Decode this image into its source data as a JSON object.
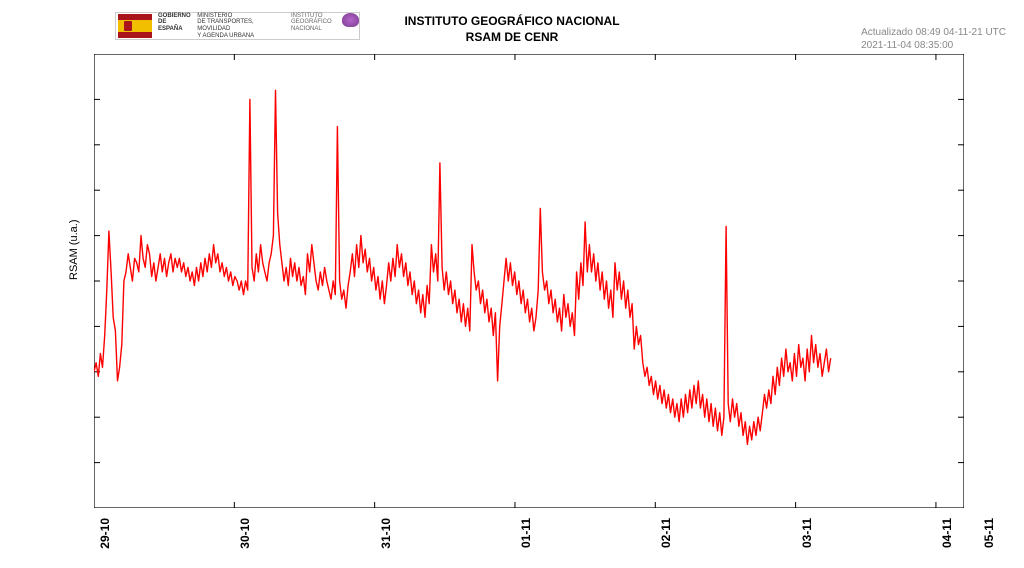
{
  "header": {
    "title_line1": "INSTITUTO GEOGRÁFICO NACIONAL",
    "title_line2": "RSAM DE CENR",
    "timestamp_line1": "Actualizado 08:49 04-11-21 UTC",
    "timestamp_line2": "2021-11-04 08:35:00",
    "logo": {
      "gov": "GOBIERNO",
      "gov2": "DE ESPAÑA",
      "min1": "MINISTERIO",
      "min2": "DE TRANSPORTES, MOVILIDAD",
      "min3": "Y AGENDA URBANA",
      "ign1": "INSTITUTO",
      "ign2": "GEOGRÁFICO",
      "ign3": "NACIONAL"
    }
  },
  "chart": {
    "type": "line",
    "ylabel": "RSAM (u.a.)",
    "line_color": "#ff0000",
    "line_width": 1.4,
    "background_color": "#ffffff",
    "axis_color": "#000000",
    "xlim": [
      0,
      6.2
    ],
    "ylim": [
      0,
      10
    ],
    "xticks": [
      {
        "pos": 0,
        "label": "29-10"
      },
      {
        "pos": 1,
        "label": "30-10"
      },
      {
        "pos": 2,
        "label": "31-10"
      },
      {
        "pos": 3,
        "label": "01-11"
      },
      {
        "pos": 4,
        "label": "02-11"
      },
      {
        "pos": 5,
        "label": "03-11"
      },
      {
        "pos": 6,
        "label": "04-11"
      },
      {
        "pos": 6.2,
        "label": "05-11",
        "outside": true
      }
    ],
    "yticks_minor": [
      1,
      2,
      3,
      4,
      5,
      6,
      7,
      8,
      9
    ],
    "series_y": [
      3.0,
      3.2,
      2.9,
      3.4,
      3.1,
      3.8,
      4.8,
      6.1,
      5.2,
      4.2,
      3.9,
      2.8,
      3.1,
      3.6,
      5.0,
      5.2,
      5.6,
      5.3,
      5.0,
      5.5,
      5.4,
      5.2,
      6.0,
      5.5,
      5.3,
      5.8,
      5.6,
      5.1,
      5.4,
      5.0,
      5.3,
      5.6,
      5.2,
      5.5,
      5.1,
      5.4,
      5.6,
      5.2,
      5.5,
      5.3,
      5.5,
      5.2,
      5.4,
      5.1,
      5.3,
      5.0,
      5.2,
      4.9,
      5.3,
      5.0,
      5.4,
      5.1,
      5.5,
      5.2,
      5.6,
      5.3,
      5.8,
      5.4,
      5.6,
      5.2,
      5.4,
      5.1,
      5.3,
      5.0,
      5.2,
      4.9,
      5.1,
      5.0,
      4.8,
      5.0,
      4.7,
      5.0,
      4.8,
      9.0,
      5.3,
      5.0,
      5.6,
      5.2,
      5.8,
      5.4,
      5.2,
      5.0,
      5.4,
      5.6,
      6.0,
      9.2,
      6.5,
      5.8,
      5.4,
      5.0,
      5.3,
      4.9,
      5.5,
      5.1,
      5.4,
      5.0,
      5.3,
      4.9,
      5.1,
      4.7,
      5.6,
      5.2,
      5.8,
      5.4,
      5.0,
      4.8,
      5.2,
      4.9,
      5.3,
      5.0,
      4.8,
      4.6,
      5.0,
      4.7,
      8.4,
      5.0,
      4.6,
      4.8,
      4.4,
      4.9,
      5.2,
      5.6,
      5.1,
      5.8,
      5.3,
      6.0,
      5.4,
      5.7,
      5.2,
      5.5,
      5.0,
      5.3,
      4.8,
      5.1,
      4.6,
      5.0,
      4.5,
      4.9,
      5.4,
      5.0,
      5.5,
      5.1,
      5.8,
      5.3,
      5.6,
      5.1,
      5.4,
      4.9,
      5.2,
      4.7,
      5.0,
      4.5,
      4.8,
      4.3,
      4.7,
      4.2,
      4.9,
      4.5,
      5.8,
      5.2,
      5.6,
      5.0,
      7.6,
      5.3,
      4.8,
      5.2,
      4.7,
      5.0,
      4.5,
      4.8,
      4.3,
      4.6,
      4.1,
      4.5,
      4.0,
      4.4,
      3.9,
      5.8,
      5.2,
      4.8,
      5.0,
      4.5,
      4.8,
      4.3,
      4.6,
      4.1,
      4.4,
      3.8,
      4.3,
      2.8,
      4.0,
      4.5,
      5.0,
      5.5,
      5.0,
      5.4,
      4.9,
      5.2,
      4.7,
      5.0,
      4.5,
      4.8,
      4.3,
      4.6,
      4.1,
      4.4,
      3.9,
      4.2,
      4.8,
      6.6,
      5.2,
      4.8,
      5.0,
      4.5,
      4.8,
      4.3,
      4.6,
      4.1,
      4.4,
      3.9,
      4.7,
      4.2,
      4.5,
      4.0,
      4.3,
      3.8,
      5.2,
      4.6,
      5.4,
      4.9,
      6.3,
      5.2,
      5.8,
      5.2,
      5.6,
      5.0,
      5.4,
      4.8,
      5.2,
      4.6,
      5.0,
      4.4,
      4.8,
      4.2,
      5.4,
      4.8,
      5.2,
      4.6,
      5.0,
      4.4,
      4.8,
      4.2,
      4.5,
      3.5,
      4.0,
      3.6,
      3.8,
      3.2,
      2.9,
      3.1,
      2.7,
      2.9,
      2.5,
      2.8,
      2.4,
      2.7,
      2.3,
      2.6,
      2.2,
      2.5,
      2.1,
      2.4,
      2.0,
      2.3,
      1.9,
      2.4,
      2.0,
      2.5,
      2.1,
      2.6,
      2.2,
      2.7,
      2.3,
      2.8,
      2.2,
      2.5,
      2.0,
      2.4,
      1.9,
      2.3,
      1.8,
      2.2,
      1.7,
      2.1,
      1.6,
      2.0,
      6.2,
      2.3,
      1.9,
      2.4,
      2.0,
      2.3,
      1.8,
      2.1,
      1.6,
      1.9,
      1.4,
      1.8,
      1.5,
      1.9,
      1.6,
      2.0,
      1.7,
      2.1,
      2.5,
      2.2,
      2.6,
      2.3,
      2.9,
      2.5,
      3.1,
      2.7,
      3.3,
      2.9,
      3.5,
      3.0,
      3.2,
      2.8,
      3.4,
      2.9,
      3.6,
      3.1,
      3.3,
      2.8,
      3.5,
      3.0,
      3.8,
      3.2,
      3.6,
      3.1,
      3.4,
      2.9,
      3.2,
      3.5,
      3.0,
      3.3
    ]
  }
}
